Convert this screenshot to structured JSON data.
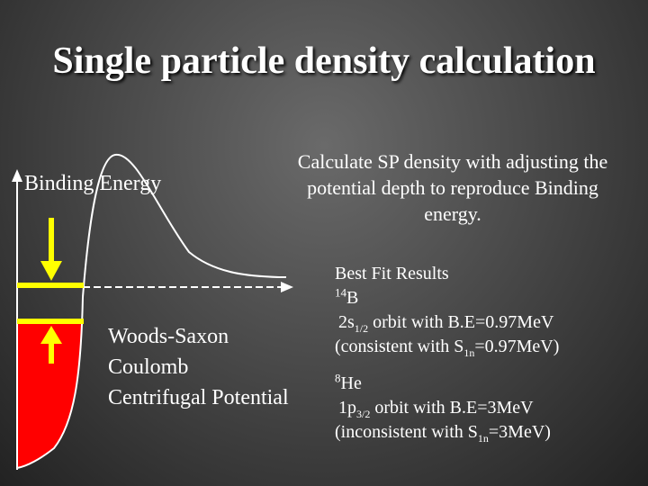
{
  "slide": {
    "title": "Single particle density calculation",
    "binding_label": "Binding Energy",
    "calc_text": "Calculate SP density with adjusting the potential depth to reproduce Binding energy.",
    "potential": [
      "Woods-Saxon",
      "Coulomb",
      "Centrifugal Potential"
    ]
  },
  "results": {
    "heading": "Best Fit Results",
    "b14": {
      "mass_number": "14",
      "element": "B",
      "orbit_pre": "2s",
      "orbit_sub": "1/2",
      "orbit_post": " orbit with B.E=0.97MeV",
      "note_pre": "(consistent with S",
      "note_sub": "1n",
      "note_post": "=0.97MeV)"
    },
    "he8": {
      "mass_number": "8",
      "element": "He",
      "orbit_pre": "1p",
      "orbit_sub": "3/2",
      "orbit_post": " orbit with B.E=3MeV",
      "note_pre": "(inconsistent with S",
      "note_sub": "1n",
      "note_post": "=3MeV)"
    }
  },
  "colors": {
    "background": "#4a4a4a",
    "well_fill": "#ff0000",
    "arrow": "#ffff00",
    "curve": "#ffffff"
  }
}
